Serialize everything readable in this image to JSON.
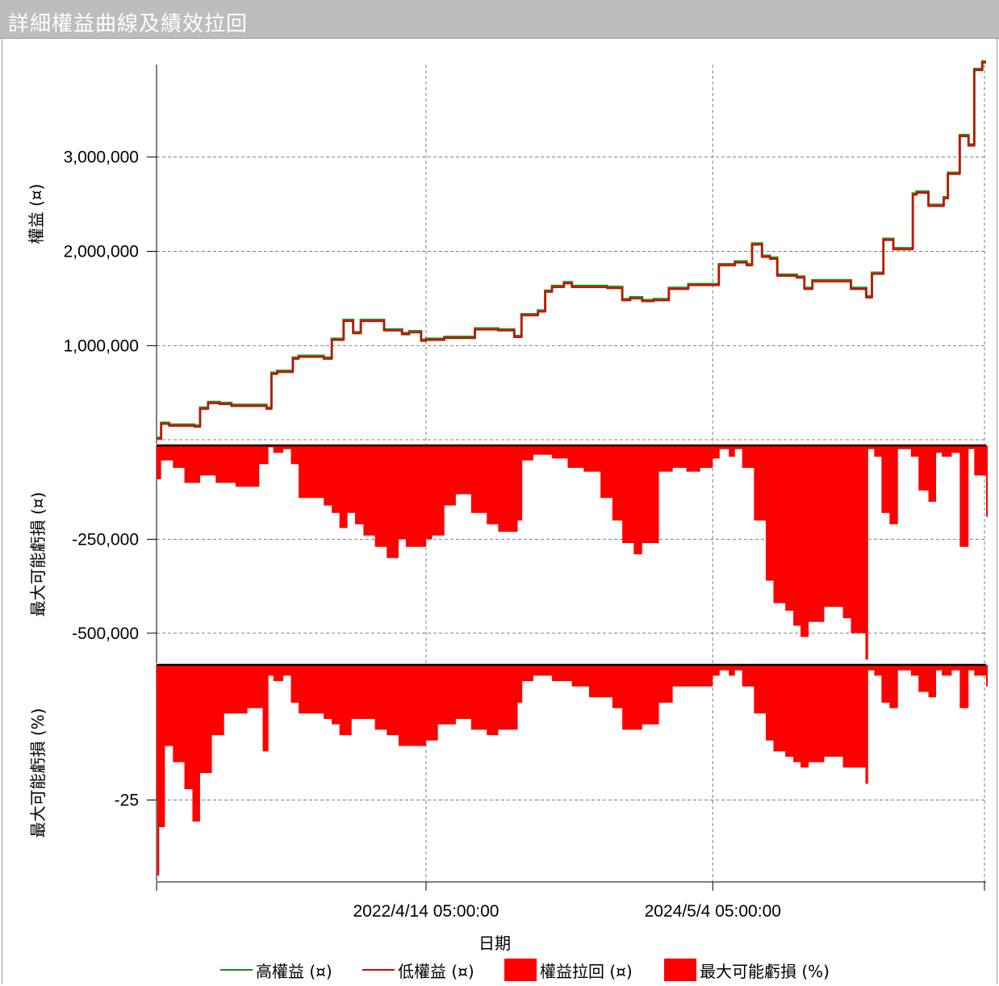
{
  "window": {
    "title": "詳細權益曲線及績效拉回"
  },
  "colors": {
    "high": "#1e8c1e",
    "low": "#e00000",
    "fill": "#ff0000",
    "grid": "#808080"
  },
  "legend": [
    {
      "label": "高權益 (¤)",
      "kind": "line",
      "color": "#1e8c1e"
    },
    {
      "label": "低權益 (¤)",
      "kind": "line",
      "color": "#e00000"
    },
    {
      "label": "權益拉回 (¤)",
      "kind": "box",
      "color": "#ff0000"
    },
    {
      "label": "最大可能虧損 (%)",
      "kind": "box",
      "color": "#ff0000"
    }
  ],
  "chart_data": [
    {
      "type": "line",
      "ylabel": "權益 (¤)",
      "ylim": [
        -40000,
        3980000
      ],
      "yticks": [
        1000000,
        2000000,
        3000000
      ],
      "ytick_labels": [
        "1,000,000",
        "2,000,000",
        "3,000,000"
      ],
      "grid": true,
      "xlabel": "日期",
      "xlim": [
        "2020-05-08",
        "2026-04-20"
      ],
      "xticks": [
        "2022-04-14",
        "2024-05-04"
      ],
      "xtick_labels": [
        "2022/4/14 05:00:00",
        "2024/5/4 05:00:00"
      ],
      "series": [
        {
          "name": "高權益 (¤)",
          "color": "#1e8c1e"
        },
        {
          "name": "低權益 (¤)",
          "color": "#e00000",
          "x": [
            "2020-05-08",
            "2020-05-20",
            "2020-06-10",
            "2020-08-15",
            "2020-08-30",
            "2020-09-20",
            "2020-10-20",
            "2020-11-20",
            "2021-02-20",
            "2021-03-05",
            "2021-03-20",
            "2021-04-30",
            "2021-05-15",
            "2021-07-20",
            "2021-08-10",
            "2021-09-10",
            "2021-10-05",
            "2021-10-25",
            "2021-12-25",
            "2022-02-10",
            "2022-03-01",
            "2022-04-01",
            "2022-04-14",
            "2022-06-01",
            "2022-08-20",
            "2022-10-20",
            "2022-12-01",
            "2022-12-20",
            "2023-02-01",
            "2023-02-20",
            "2023-03-10",
            "2023-04-10",
            "2023-05-01",
            "2023-08-01",
            "2023-09-10",
            "2023-10-01",
            "2023-11-01",
            "2023-12-01",
            "2024-01-10",
            "2024-03-01",
            "2024-04-01",
            "2024-05-04",
            "2024-05-20",
            "2024-07-01",
            "2024-08-01",
            "2024-08-15",
            "2024-09-10",
            "2024-10-01",
            "2024-10-20",
            "2024-12-10",
            "2024-12-30",
            "2025-01-20",
            "2025-03-01",
            "2025-05-01",
            "2025-05-20",
            "2025-06-10",
            "2025-06-25",
            "2025-07-25",
            "2025-08-20",
            "2025-09-20",
            "2025-10-10",
            "2025-10-20",
            "2025-11-20",
            "2025-12-30",
            "2026-01-10",
            "2026-02-10",
            "2026-02-20",
            "2026-03-05",
            "2026-03-20",
            "2026-04-10",
            "2026-04-20"
          ],
          "values": [
            10000,
            170000,
            150000,
            140000,
            330000,
            390000,
            380000,
            360000,
            330000,
            700000,
            720000,
            860000,
            880000,
            860000,
            1060000,
            1260000,
            1130000,
            1260000,
            1160000,
            1120000,
            1140000,
            1050000,
            1060000,
            1080000,
            1170000,
            1160000,
            1090000,
            1320000,
            1360000,
            1570000,
            1620000,
            1660000,
            1620000,
            1610000,
            1480000,
            1500000,
            1470000,
            1480000,
            1600000,
            1640000,
            1640000,
            1640000,
            1850000,
            1880000,
            1850000,
            2070000,
            1940000,
            1920000,
            1740000,
            1720000,
            1600000,
            1680000,
            1680000,
            1600000,
            1600000,
            1510000,
            1760000,
            2120000,
            2020000,
            2020000,
            2600000,
            2620000,
            2480000,
            2560000,
            2820000,
            3220000,
            3220000,
            3120000,
            3920000,
            4000000,
            4000000
          ]
        }
      ]
    },
    {
      "type": "area",
      "ylabel": "最大可能虧損 (¤)",
      "ylim": [
        -580000,
        0
      ],
      "yticks": [
        -250000,
        -500000
      ],
      "ytick_labels": [
        "-250,000",
        "-500,000"
      ],
      "grid": true,
      "series": [
        {
          "name": "權益拉回 (¤)",
          "color": "#ff0000",
          "x": [
            "2020-05-08",
            "2020-05-20",
            "2020-06-20",
            "2020-07-20",
            "2020-08-30",
            "2020-10-10",
            "2020-12-01",
            "2021-02-01",
            "2021-02-25",
            "2021-03-10",
            "2021-04-05",
            "2021-04-25",
            "2021-05-15",
            "2021-07-20",
            "2021-08-10",
            "2021-08-30",
            "2021-09-20",
            "2021-10-10",
            "2021-11-01",
            "2021-12-01",
            "2022-01-01",
            "2022-02-01",
            "2022-02-20",
            "2022-04-14",
            "2022-04-30",
            "2022-06-01",
            "2022-07-01",
            "2022-08-10",
            "2022-09-20",
            "2022-10-20",
            "2022-12-10",
            "2022-12-22",
            "2023-01-20",
            "2023-03-10",
            "2023-04-20",
            "2023-06-01",
            "2023-07-15",
            "2023-08-15",
            "2023-09-10",
            "2023-10-10",
            "2023-11-01",
            "2023-12-15",
            "2024-01-20",
            "2024-02-25",
            "2024-04-01",
            "2024-05-04",
            "2024-05-22",
            "2024-06-15",
            "2024-07-01",
            "2024-07-20",
            "2024-08-20",
            "2024-09-20",
            "2024-10-10",
            "2024-11-10",
            "2024-12-01",
            "2024-12-20",
            "2025-01-10",
            "2025-02-20",
            "2025-04-10",
            "2025-05-01",
            "2025-05-20",
            "2025-06-08",
            "2025-06-15",
            "2025-07-01",
            "2025-07-20",
            "2025-08-10",
            "2025-09-01",
            "2025-10-05",
            "2025-10-25",
            "2025-11-20",
            "2025-12-10",
            "2025-12-25",
            "2026-01-20",
            "2026-02-10",
            "2026-03-05",
            "2026-03-20",
            "2026-04-20"
          ],
          "values": [
            -90000,
            -40000,
            -60000,
            -100000,
            -80000,
            -100000,
            -110000,
            -50000,
            -5000,
            -20000,
            -10000,
            -50000,
            -140000,
            -160000,
            -180000,
            -220000,
            -180000,
            -210000,
            -240000,
            -270000,
            -300000,
            -250000,
            -270000,
            -250000,
            -240000,
            -160000,
            -130000,
            -180000,
            -210000,
            -230000,
            -200000,
            -40000,
            -25000,
            -35000,
            -60000,
            -70000,
            -140000,
            -200000,
            -260000,
            -290000,
            -260000,
            -70000,
            -60000,
            -70000,
            -60000,
            -35000,
            -10000,
            -30000,
            -10000,
            -60000,
            -200000,
            -360000,
            -420000,
            -440000,
            -480000,
            -510000,
            -470000,
            -430000,
            -460000,
            -500000,
            -500000,
            -570000,
            -10000,
            -30000,
            -180000,
            -210000,
            -10000,
            -30000,
            -120000,
            -150000,
            -20000,
            -30000,
            -20000,
            -270000,
            -10000,
            -80000,
            -190000
          ]
        }
      ]
    },
    {
      "type": "area",
      "ylabel": "最大可能虧損 (%)",
      "ylim": [
        -40,
        0
      ],
      "yticks": [
        -25
      ],
      "ytick_labels": [
        "-25"
      ],
      "grid": true,
      "series": [
        {
          "name": "最大可能虧損 (%)",
          "color": "#ff0000",
          "x": [
            "2020-05-08",
            "2020-05-10",
            "2020-05-15",
            "2020-05-30",
            "2020-06-20",
            "2020-07-20",
            "2020-08-10",
            "2020-08-30",
            "2020-09-30",
            "2020-11-01",
            "2021-01-01",
            "2021-02-10",
            "2021-02-25",
            "2021-03-10",
            "2021-04-05",
            "2021-04-25",
            "2021-05-15",
            "2021-07-20",
            "2021-08-10",
            "2021-08-30",
            "2021-10-01",
            "2021-12-01",
            "2022-01-01",
            "2022-02-01",
            "2022-02-20",
            "2022-04-14",
            "2022-05-15",
            "2022-07-01",
            "2022-08-10",
            "2022-09-20",
            "2022-10-20",
            "2022-12-10",
            "2022-12-22",
            "2023-01-20",
            "2023-03-10",
            "2023-05-01",
            "2023-06-15",
            "2023-08-15",
            "2023-09-10",
            "2023-10-10",
            "2023-11-01",
            "2023-12-15",
            "2024-01-20",
            "2024-02-25",
            "2024-04-01",
            "2024-05-04",
            "2024-05-22",
            "2024-06-15",
            "2024-07-01",
            "2024-07-20",
            "2024-08-20",
            "2024-09-20",
            "2024-10-10",
            "2024-11-10",
            "2024-12-01",
            "2024-12-20",
            "2025-01-10",
            "2025-02-20",
            "2025-04-10",
            "2025-05-01",
            "2025-05-20",
            "2025-06-08",
            "2025-06-15",
            "2025-07-01",
            "2025-07-20",
            "2025-08-10",
            "2025-09-01",
            "2025-10-05",
            "2025-10-25",
            "2025-11-20",
            "2025-12-10",
            "2025-12-25",
            "2026-01-20",
            "2026-02-10",
            "2026-03-05",
            "2026-03-20",
            "2026-04-20"
          ],
          "values": [
            -25,
            -39,
            -30,
            -15,
            -18,
            -23,
            -29,
            -20,
            -13,
            -9,
            -8,
            -16,
            -2,
            -3,
            -2,
            -7,
            -9,
            -10,
            -11,
            -13,
            -10,
            -12,
            -13,
            -15,
            -15,
            -14,
            -11,
            -10,
            -12,
            -13,
            -12,
            -7,
            -3,
            -2,
            -3,
            -4,
            -6,
            -8,
            -12,
            -12,
            -11,
            -7,
            -4,
            -4,
            -4,
            -2,
            -1,
            -2,
            -1,
            -4,
            -9,
            -14,
            -16,
            -17,
            -18,
            -19,
            -18,
            -17,
            -19,
            -19,
            -19,
            -22,
            -1,
            -2,
            -7,
            -8,
            -1,
            -2,
            -5,
            -6,
            -1,
            -2,
            -1,
            -8,
            -1,
            -2,
            -4
          ]
        }
      ]
    }
  ]
}
